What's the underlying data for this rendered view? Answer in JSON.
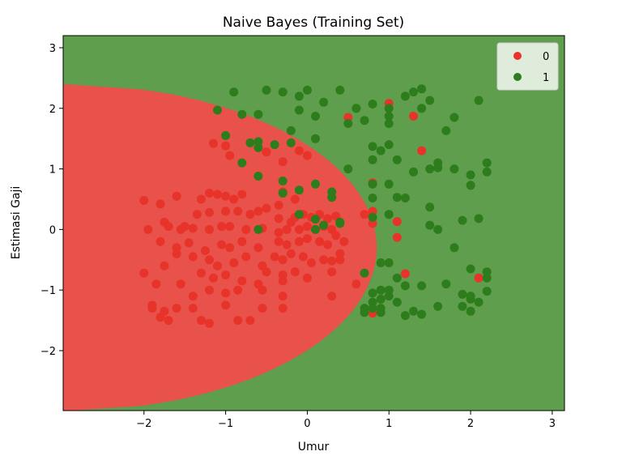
{
  "chart_data": {
    "type": "scatter",
    "title": "Naive Bayes (Training Set)",
    "xlabel": "Umur",
    "ylabel": "Estimasi Gaji",
    "xlim": [
      -2.99,
      3.15
    ],
    "ylim": [
      -2.99,
      3.2
    ],
    "xticks": [
      -2,
      -1,
      0,
      1,
      2,
      3
    ],
    "yticks": [
      -2,
      -1,
      0,
      1,
      2,
      3
    ],
    "xtick_labels": [
      "−2",
      "−1",
      "0",
      "1",
      "2",
      "3"
    ],
    "ytick_labels": [
      "−2",
      "−1",
      "0",
      "1",
      "2",
      "3"
    ],
    "legend_position": "top-right",
    "grid": false,
    "regions": {
      "0": {
        "color": "#e8524a"
      },
      "1": {
        "color": "#5f9e4d"
      },
      "boundary_estimate": {
        "x_vertex": 0.85,
        "y_center": -0.3,
        "y_half_width": 2.7
      }
    },
    "series": [
      {
        "name": "0",
        "color": "#e8332a",
        "points": [
          [
            -2.0,
            0.48
          ],
          [
            -1.8,
            0.42
          ],
          [
            -1.6,
            0.55
          ],
          [
            -1.3,
            0.5
          ],
          [
            -1.2,
            0.6
          ],
          [
            -1.1,
            0.58
          ],
          [
            -1.0,
            0.55
          ],
          [
            -0.9,
            0.5
          ],
          [
            -0.8,
            0.58
          ],
          [
            -1.75,
            0.12
          ],
          [
            -1.5,
            0.05
          ],
          [
            -1.35,
            0.25
          ],
          [
            -1.2,
            0.28
          ],
          [
            -1.0,
            0.3
          ],
          [
            -0.85,
            0.3
          ],
          [
            -0.7,
            0.25
          ],
          [
            -0.6,
            0.3
          ],
          [
            -0.5,
            0.35
          ],
          [
            -0.35,
            0.4
          ],
          [
            -1.95,
            0.0
          ],
          [
            -1.7,
            0.05
          ],
          [
            -1.55,
            0.0
          ],
          [
            -1.4,
            0.02
          ],
          [
            -1.2,
            0.0
          ],
          [
            -1.05,
            0.05
          ],
          [
            -0.95,
            0.05
          ],
          [
            -0.75,
            0.0
          ],
          [
            -0.55,
            0.02
          ],
          [
            -1.8,
            -0.2
          ],
          [
            -1.6,
            -0.3
          ],
          [
            -1.45,
            -0.22
          ],
          [
            -1.25,
            -0.35
          ],
          [
            -1.05,
            -0.25
          ],
          [
            -0.95,
            -0.3
          ],
          [
            -0.8,
            -0.2
          ],
          [
            -0.6,
            -0.3
          ],
          [
            -1.75,
            -0.6
          ],
          [
            -1.6,
            -0.4
          ],
          [
            -1.4,
            -0.45
          ],
          [
            -1.2,
            -0.5
          ],
          [
            -1.1,
            -0.6
          ],
          [
            -0.9,
            -0.55
          ],
          [
            -0.75,
            -0.45
          ],
          [
            -0.55,
            -0.6
          ],
          [
            -2.0,
            -0.72
          ],
          [
            -1.85,
            -0.9
          ],
          [
            -1.55,
            -0.9
          ],
          [
            -1.3,
            -0.72
          ],
          [
            -1.15,
            -0.8
          ],
          [
            -1.0,
            -0.75
          ],
          [
            -0.8,
            -0.85
          ],
          [
            -0.6,
            -0.9
          ],
          [
            -1.9,
            -1.3
          ],
          [
            -1.8,
            -1.45
          ],
          [
            -1.75,
            -1.35
          ],
          [
            -1.6,
            -1.3
          ],
          [
            -1.4,
            -1.3
          ],
          [
            -1.3,
            -1.5
          ],
          [
            -1.2,
            -1.55
          ],
          [
            -1.0,
            -1.25
          ],
          [
            -0.85,
            -1.5
          ],
          [
            -0.7,
            -1.5
          ],
          [
            -0.55,
            -1.3
          ],
          [
            -1.9,
            -1.25
          ],
          [
            -1.7,
            -1.5
          ],
          [
            -1.4,
            -1.1
          ],
          [
            -1.2,
            -1.0
          ],
          [
            -1.0,
            -1.05
          ],
          [
            -0.85,
            -1.0
          ],
          [
            -0.55,
            -1.0
          ],
          [
            -0.3,
            -1.1
          ],
          [
            -0.3,
            -1.3
          ],
          [
            -0.3,
            -0.85
          ],
          [
            -1.15,
            1.42
          ],
          [
            -1.0,
            1.38
          ],
          [
            -0.95,
            1.22
          ],
          [
            -0.5,
            1.28
          ],
          [
            -0.3,
            1.12
          ],
          [
            -0.1,
            1.3
          ],
          [
            0.0,
            1.22
          ],
          [
            -0.3,
            0.62
          ],
          [
            -0.15,
            0.5
          ],
          [
            -0.35,
            0.18
          ],
          [
            -0.2,
            0.12
          ],
          [
            -0.15,
            0.2
          ],
          [
            -0.05,
            0.25
          ],
          [
            0.05,
            0.2
          ],
          [
            0.15,
            0.25
          ],
          [
            0.25,
            0.18
          ],
          [
            0.35,
            0.22
          ],
          [
            -0.35,
            -0.05
          ],
          [
            -0.25,
            0.0
          ],
          [
            -0.1,
            0.0
          ],
          [
            0.0,
            0.05
          ],
          [
            0.1,
            0.0
          ],
          [
            0.2,
            0.05
          ],
          [
            0.3,
            0.0
          ],
          [
            -0.35,
            -0.2
          ],
          [
            -0.25,
            -0.25
          ],
          [
            -0.1,
            -0.2
          ],
          [
            0.0,
            -0.15
          ],
          [
            0.15,
            -0.2
          ],
          [
            0.25,
            -0.25
          ],
          [
            0.35,
            -0.1
          ],
          [
            0.45,
            -0.2
          ],
          [
            -0.4,
            -0.45
          ],
          [
            -0.3,
            -0.5
          ],
          [
            -0.2,
            -0.4
          ],
          [
            -0.05,
            -0.45
          ],
          [
            0.05,
            -0.55
          ],
          [
            0.2,
            -0.5
          ],
          [
            0.3,
            -0.52
          ],
          [
            0.4,
            -0.4
          ],
          [
            -0.5,
            -0.7
          ],
          [
            -0.3,
            -0.75
          ],
          [
            -0.15,
            -0.7
          ],
          [
            0.0,
            -0.8
          ],
          [
            0.3,
            -0.7
          ],
          [
            0.4,
            -0.5
          ],
          [
            0.6,
            -0.9
          ],
          [
            0.3,
            -1.1
          ],
          [
            0.5,
            1.85
          ],
          [
            1.0,
            2.08
          ],
          [
            1.3,
            1.87
          ],
          [
            1.4,
            1.3
          ],
          [
            0.8,
            0.77
          ],
          [
            0.8,
            0.3
          ],
          [
            0.7,
            0.25
          ],
          [
            0.8,
            0.1
          ],
          [
            1.1,
            0.13
          ],
          [
            1.1,
            -0.13
          ],
          [
            1.2,
            -0.73
          ],
          [
            2.1,
            -0.8
          ],
          [
            0.8,
            -1.38
          ]
        ]
      },
      {
        "name": "1",
        "color": "#2e7d1c",
        "points": [
          [
            -1.1,
            1.97
          ],
          [
            -0.9,
            2.27
          ],
          [
            -0.8,
            1.9
          ],
          [
            -0.6,
            1.9
          ],
          [
            -0.5,
            2.3
          ],
          [
            -0.3,
            2.27
          ],
          [
            -0.1,
            2.2
          ],
          [
            0.0,
            2.3
          ],
          [
            0.2,
            2.1
          ],
          [
            0.4,
            2.3
          ],
          [
            -0.1,
            1.97
          ],
          [
            0.1,
            1.87
          ],
          [
            0.6,
            2.0
          ],
          [
            0.8,
            2.07
          ],
          [
            0.5,
            1.75
          ],
          [
            0.7,
            1.8
          ],
          [
            1.0,
            2.0
          ],
          [
            1.0,
            1.87
          ],
          [
            1.0,
            1.75
          ],
          [
            1.2,
            2.2
          ],
          [
            1.3,
            2.27
          ],
          [
            1.4,
            2.32
          ],
          [
            1.4,
            2.0
          ],
          [
            1.5,
            2.13
          ],
          [
            1.7,
            1.63
          ],
          [
            1.8,
            1.85
          ],
          [
            2.1,
            2.13
          ],
          [
            -0.2,
            1.63
          ],
          [
            0.1,
            1.5
          ],
          [
            -0.6,
            1.45
          ],
          [
            -0.4,
            1.4
          ],
          [
            -0.6,
            1.35
          ],
          [
            -1.0,
            1.55
          ],
          [
            -0.7,
            1.43
          ],
          [
            -0.2,
            1.43
          ],
          [
            -0.8,
            1.1
          ],
          [
            -0.6,
            0.88
          ],
          [
            -0.3,
            0.8
          ],
          [
            -0.3,
            0.6
          ],
          [
            0.1,
            0.75
          ],
          [
            0.3,
            0.62
          ],
          [
            0.3,
            0.53
          ],
          [
            0.8,
            1.37
          ],
          [
            0.9,
            1.3
          ],
          [
            1.0,
            1.4
          ],
          [
            0.8,
            1.15
          ],
          [
            1.1,
            1.15
          ],
          [
            0.5,
            1.0
          ],
          [
            0.8,
            0.75
          ],
          [
            1.0,
            0.75
          ],
          [
            1.1,
            0.53
          ],
          [
            1.2,
            0.52
          ],
          [
            1.3,
            0.95
          ],
          [
            1.5,
            1.0
          ],
          [
            1.6,
            1.1
          ],
          [
            1.6,
            1.02
          ],
          [
            1.8,
            1.0
          ],
          [
            2.0,
            0.9
          ],
          [
            2.0,
            0.73
          ],
          [
            2.2,
            1.1
          ],
          [
            2.2,
            0.95
          ],
          [
            0.8,
            0.52
          ],
          [
            0.8,
            0.2
          ],
          [
            1.0,
            0.25
          ],
          [
            1.5,
            0.37
          ],
          [
            1.5,
            0.07
          ],
          [
            1.6,
            0.0
          ],
          [
            1.9,
            0.15
          ],
          [
            2.1,
            0.18
          ],
          [
            1.8,
            -0.3
          ],
          [
            2.0,
            -0.65
          ],
          [
            2.2,
            -0.7
          ],
          [
            2.2,
            -0.8
          ],
          [
            -0.1,
            0.25
          ],
          [
            0.1,
            0.17
          ],
          [
            0.2,
            0.07
          ],
          [
            0.4,
            0.12
          ],
          [
            0.4,
            0.1
          ],
          [
            -0.1,
            0.65
          ],
          [
            0.1,
            0.0
          ],
          [
            -0.6,
            0.0
          ],
          [
            0.9,
            -0.55
          ],
          [
            1.0,
            -0.55
          ],
          [
            0.7,
            -0.72
          ],
          [
            1.1,
            -0.8
          ],
          [
            1.2,
            -0.93
          ],
          [
            1.4,
            -0.93
          ],
          [
            1.7,
            -0.9
          ],
          [
            2.0,
            -1.1
          ],
          [
            2.2,
            -1.02
          ],
          [
            0.8,
            -1.05
          ],
          [
            0.9,
            -1.0
          ],
          [
            1.0,
            -1.0
          ],
          [
            0.8,
            -1.2
          ],
          [
            0.9,
            -1.15
          ],
          [
            0.8,
            -1.3
          ],
          [
            0.7,
            -1.3
          ],
          [
            0.9,
            -1.3
          ],
          [
            1.0,
            -1.1
          ],
          [
            1.1,
            -1.2
          ],
          [
            0.7,
            -1.37
          ],
          [
            0.9,
            -1.37
          ],
          [
            1.2,
            -1.42
          ],
          [
            1.3,
            -1.35
          ],
          [
            1.4,
            -1.4
          ],
          [
            1.6,
            -1.27
          ],
          [
            1.9,
            -1.27
          ],
          [
            2.0,
            -1.35
          ],
          [
            2.0,
            -1.15
          ],
          [
            2.1,
            -1.2
          ],
          [
            1.9,
            -1.07
          ]
        ]
      }
    ]
  }
}
